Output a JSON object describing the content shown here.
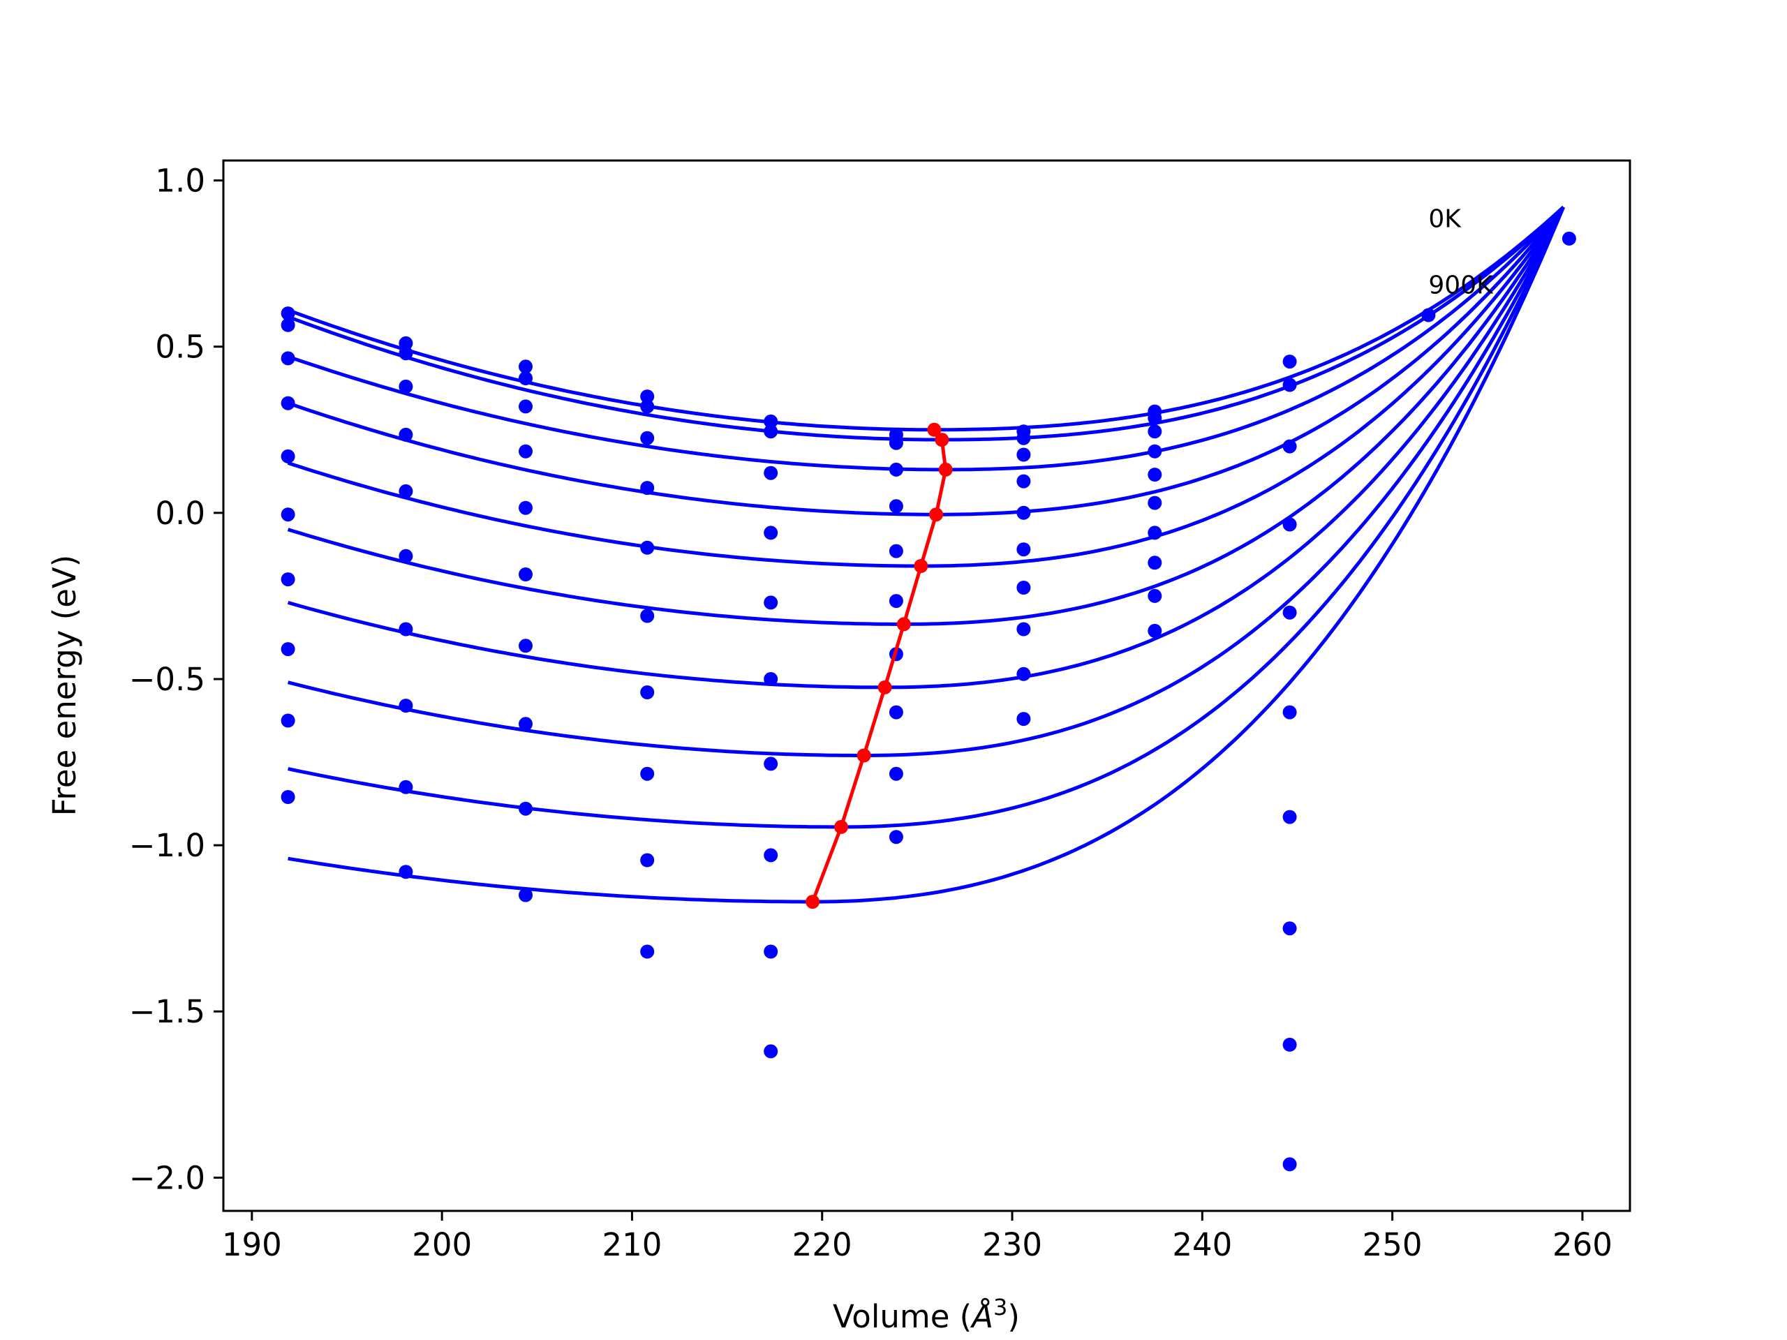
{
  "chart_data": {
    "type": "line",
    "xlabel_main": "Volume (",
    "xlabel_unit": "Å",
    "xlabel_exp": "3",
    "xlabel_close": ")",
    "ylabel": "Free energy (eV)",
    "xlim": [
      188.5,
      262.5
    ],
    "ylim": [
      -2.1,
      1.06
    ],
    "xticks": [
      190,
      200,
      210,
      220,
      230,
      240,
      250,
      260
    ],
    "xtick_labels": [
      "190",
      "200",
      "210",
      "220",
      "230",
      "240",
      "250",
      "260"
    ],
    "yticks": [
      1.0,
      0.5,
      0.0,
      -0.5,
      -1.0,
      -1.5,
      -2.0
    ],
    "ytick_labels": [
      "1.0",
      "0.5",
      "0.0",
      "−0.5",
      "−1.0",
      "−1.5",
      "−2.0"
    ],
    "annotations": [
      {
        "text": "0K",
        "x": 251.9,
        "y": 0.86
      },
      {
        "text": "900K",
        "x": 251.9,
        "y": 0.66
      }
    ],
    "curve_color": "#0000ff",
    "min_line_color": "#ff0000",
    "curve_x_range": [
      191.9,
      259.0
    ],
    "curve_end_y": 0.92,
    "curves": [
      {
        "x": [
          191.9,
          225.9,
          259.0
        ],
        "y": [
          0.61,
          0.25,
          0.92
        ]
      },
      {
        "x": [
          191.9,
          226.3,
          259.0
        ],
        "y": [
          0.59,
          0.22,
          0.92
        ]
      },
      {
        "x": [
          191.9,
          226.5,
          259.0
        ],
        "y": [
          0.47,
          0.13,
          0.92
        ]
      },
      {
        "x": [
          191.9,
          226.0,
          259.0
        ],
        "y": [
          0.33,
          -0.005,
          0.92
        ]
      },
      {
        "x": [
          191.9,
          225.2,
          259.0
        ],
        "y": [
          0.15,
          -0.16,
          0.92
        ]
      },
      {
        "x": [
          191.9,
          224.3,
          259.0
        ],
        "y": [
          -0.05,
          -0.335,
          0.92
        ]
      },
      {
        "x": [
          191.9,
          223.3,
          259.0
        ],
        "y": [
          -0.27,
          -0.525,
          0.92
        ]
      },
      {
        "x": [
          191.9,
          222.2,
          259.0
        ],
        "y": [
          -0.51,
          -0.73,
          0.92
        ]
      },
      {
        "x": [
          191.9,
          221.0,
          259.0
        ],
        "y": [
          -0.77,
          -0.945,
          0.92
        ]
      },
      {
        "x": [
          191.9,
          219.5,
          259.0
        ],
        "y": [
          -1.04,
          -1.17,
          0.92
        ]
      }
    ],
    "minima_line": {
      "x": [
        225.9,
        226.3,
        226.5,
        226.0,
        225.2,
        224.3,
        223.3,
        222.2,
        221.0,
        219.5
      ],
      "y": [
        0.25,
        0.22,
        0.13,
        -0.005,
        -0.16,
        -0.335,
        -0.525,
        -0.73,
        -0.945,
        -1.17
      ]
    },
    "scatter_points": [
      {
        "x": 191.9,
        "y": [
          0.6,
          0.565,
          0.465,
          0.33,
          0.17,
          -0.005,
          -0.2,
          -0.41,
          -0.625,
          -0.855
        ]
      },
      {
        "x": 198.1,
        "y": [
          0.51,
          0.48,
          0.38,
          0.235,
          0.065,
          -0.13,
          -0.35,
          -0.58,
          -0.825,
          -1.08
        ]
      },
      {
        "x": 204.4,
        "y": [
          0.44,
          0.405,
          0.32,
          0.185,
          0.015,
          -0.185,
          -0.4,
          -0.635,
          -0.89,
          -1.15
        ]
      },
      {
        "x": 210.8,
        "y": [
          0.35,
          0.32,
          0.225,
          0.075,
          -0.105,
          -0.31,
          -0.54,
          -0.785,
          -1.045,
          -1.32
        ]
      },
      {
        "x": 217.3,
        "y": [
          0.275,
          0.245,
          0.12,
          -0.06,
          -0.27,
          -0.5,
          -0.755,
          -1.03,
          -1.32,
          -1.62
        ]
      },
      {
        "x": 223.9,
        "y": [
          0.235,
          0.21,
          0.13,
          0.02,
          -0.115,
          -0.265,
          -0.425,
          -0.6,
          -0.785,
          -0.975
        ]
      },
      {
        "x": 230.6,
        "y": [
          0.245,
          0.225,
          0.175,
          0.095,
          0.0,
          -0.11,
          -0.225,
          -0.35,
          -0.485,
          -0.62
        ]
      },
      {
        "x": 237.5,
        "y": [
          0.305,
          0.285,
          0.245,
          0.185,
          0.115,
          0.03,
          -0.06,
          -0.15,
          -0.25,
          -0.355
        ]
      },
      {
        "x": 244.6,
        "y": [
          0.455,
          0.385,
          0.2,
          -0.035,
          -0.3,
          -0.6,
          -0.915,
          -1.25,
          -1.6,
          -1.96
        ]
      },
      {
        "x": 251.9,
        "y": [
          0.595
        ]
      },
      {
        "x": 259.3,
        "y": [
          0.825
        ]
      }
    ]
  }
}
